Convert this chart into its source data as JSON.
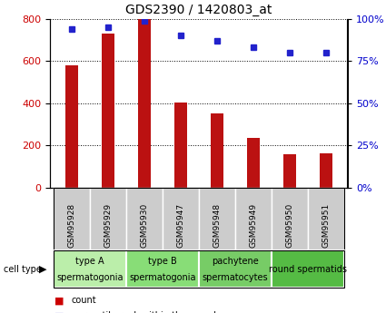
{
  "title": "GDS2390 / 1420803_at",
  "samples": [
    "GSM95928",
    "GSM95929",
    "GSM95930",
    "GSM95947",
    "GSM95948",
    "GSM95949",
    "GSM95950",
    "GSM95951"
  ],
  "counts": [
    580,
    730,
    800,
    405,
    350,
    235,
    158,
    163
  ],
  "percentile_ranks": [
    94,
    95,
    99,
    90,
    87,
    83,
    80,
    80
  ],
  "cell_types": [
    {
      "label": "type A\nspermatogonia",
      "span": [
        0,
        2
      ],
      "color": "#bbeeaa"
    },
    {
      "label": "type B\nspermatogonia",
      "span": [
        2,
        4
      ],
      "color": "#88dd77"
    },
    {
      "label": "pachytene\nspermatocytes",
      "span": [
        4,
        6
      ],
      "color": "#77cc66"
    },
    {
      "label": "round spermatids",
      "span": [
        6,
        8
      ],
      "color": "#55bb44"
    }
  ],
  "bar_color": "#bb1111",
  "dot_color": "#2222cc",
  "left_ylim": [
    0,
    800
  ],
  "right_ylim": [
    0,
    100
  ],
  "left_yticks": [
    0,
    200,
    400,
    600,
    800
  ],
  "right_yticks": [
    0,
    25,
    50,
    75,
    100
  ],
  "right_yticklabels": [
    "0%",
    "25%",
    "50%",
    "75%",
    "100%"
  ],
  "ylabel_left_color": "#cc0000",
  "ylabel_right_color": "#0000cc",
  "tick_box_color": "#cccccc",
  "legend_count_color": "#cc0000",
  "legend_dot_color": "#0000cc",
  "bar_width": 0.35,
  "figsize": [
    4.25,
    3.45
  ],
  "dpi": 100
}
